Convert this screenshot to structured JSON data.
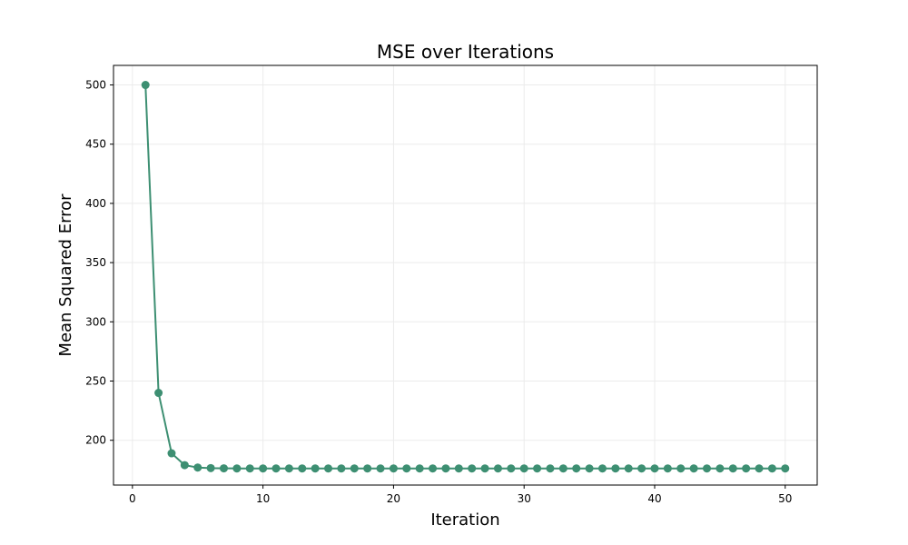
{
  "chart_data": {
    "type": "line",
    "title": "MSE over Iterations",
    "xlabel": "Iteration",
    "ylabel": "Mean Squared Error",
    "xlim": [
      -1.45,
      52.45
    ],
    "ylim": [
      162.2,
      516.5
    ],
    "xticks": [
      0,
      10,
      20,
      30,
      40,
      50
    ],
    "yticks": [
      200,
      250,
      300,
      350,
      400,
      450,
      500
    ],
    "grid": true,
    "series": [
      {
        "name": "MSE",
        "color": "#3d8f72",
        "marker": "circle",
        "x": [
          1,
          2,
          3,
          4,
          5,
          6,
          7,
          8,
          9,
          10,
          11,
          12,
          13,
          14,
          15,
          16,
          17,
          18,
          19,
          20,
          21,
          22,
          23,
          24,
          25,
          26,
          27,
          28,
          29,
          30,
          31,
          32,
          33,
          34,
          35,
          36,
          37,
          38,
          39,
          40,
          41,
          42,
          43,
          44,
          45,
          46,
          47,
          48,
          49,
          50
        ],
        "y": [
          500,
          240,
          189,
          179,
          177,
          176.5,
          176.3,
          176.2,
          176.2,
          176.2,
          176.2,
          176.2,
          176.2,
          176.2,
          176.2,
          176.2,
          176.2,
          176.2,
          176.2,
          176.2,
          176.2,
          176.2,
          176.2,
          176.2,
          176.2,
          176.2,
          176.2,
          176.2,
          176.2,
          176.2,
          176.2,
          176.2,
          176.2,
          176.2,
          176.2,
          176.2,
          176.2,
          176.2,
          176.2,
          176.2,
          176.2,
          176.2,
          176.2,
          176.2,
          176.2,
          176.2,
          176.2,
          176.2,
          176.2,
          176.2
        ]
      }
    ]
  }
}
